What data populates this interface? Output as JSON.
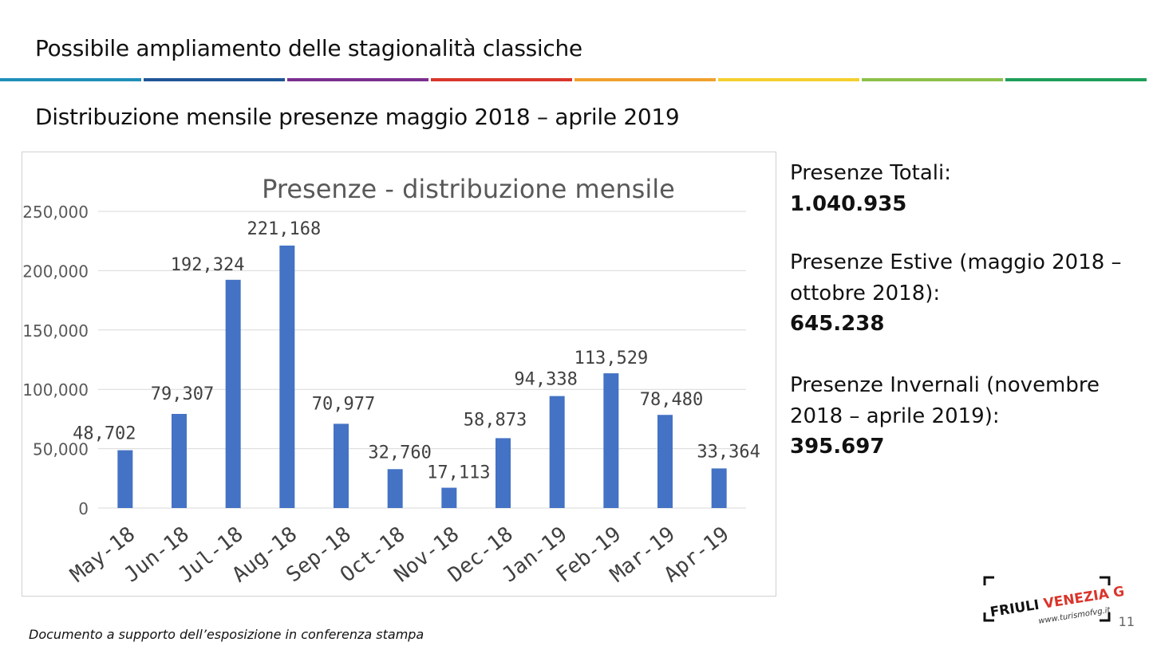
{
  "slide": {
    "title": "Possibile ampliamento delle stagionalità classiche",
    "subtitle": "Distribuzione mensile presenze maggio 2018 – aprile 2019",
    "rule_colors": [
      "#1f8fb8",
      "#1f5596",
      "#7b2f8f",
      "#d9352b",
      "#f0a22e",
      "#f4cf2f",
      "#8cc04a",
      "#1e9e5a"
    ]
  },
  "chart_data": {
    "type": "bar",
    "title": "Presenze - distribuzione mensile",
    "categories": [
      "May-18",
      "Jun-18",
      "Jul-18",
      "Aug-18",
      "Sep-18",
      "Oct-18",
      "Nov-18",
      "Dec-18",
      "Jan-19",
      "Feb-19",
      "Mar-19",
      "Apr-19"
    ],
    "values": [
      48702,
      79307,
      192324,
      221168,
      70977,
      32760,
      17113,
      58873,
      94338,
      113529,
      78480,
      33364
    ],
    "value_labels": [
      "48,702",
      "79,307",
      "192,324",
      "221,168",
      "70,977",
      "32,760",
      "17,113",
      "58,873",
      "94,338",
      "113,529",
      "78,480",
      "33,364"
    ],
    "y_ticks": [
      0,
      50000,
      100000,
      150000,
      200000,
      250000
    ],
    "y_tick_labels": [
      "0",
      "50,000",
      "100,000",
      "150,000",
      "200,000",
      "250,000"
    ],
    "ylim": [
      0,
      250000
    ],
    "grid": true,
    "bar_color": "#4472c4",
    "xlabel": "",
    "ylabel": ""
  },
  "summary": {
    "total_label": "Presenze Totali:",
    "total_value": "1.040.935",
    "summer_label": "Presenze Estive (maggio 2018 – ottobre 2018):",
    "summer_value": "645.238",
    "winter_label": "Presenze Invernali (novembre 2018 – aprile 2019):",
    "winter_value": "395.697"
  },
  "footer": {
    "note": "Documento a supporto dell’esposizione in conferenza stampa",
    "page_number": "11"
  },
  "logo": {
    "brand_part1": "FRIULI ",
    "brand_part2": "VENEZIA GIULIA",
    "url": "www.turismofvg.it",
    "brand_color": "#d9352b"
  }
}
